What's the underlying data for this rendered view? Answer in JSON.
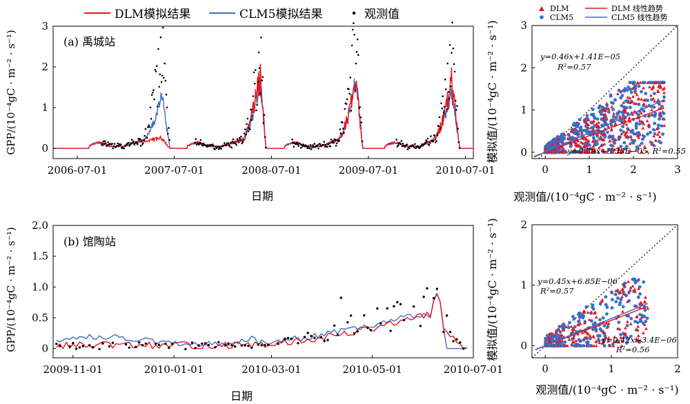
{
  "legend": {
    "dlm_label": "DLM模拟结果",
    "clm5_label": "CLM5模拟结果",
    "obs_label": "观测值"
  },
  "colors": {
    "dlm": "#e8141c",
    "clm5": "#3a6ec4",
    "obs": "#000000",
    "one_to_one": "#000000"
  },
  "chart_data": [
    {
      "id": "a_ts",
      "type": "line",
      "panel_label": "(a) 禹城站",
      "xlabel": "日期",
      "ylabel": "GPP/(10⁻⁴gC · m⁻² · s⁻¹)",
      "x_ticks": [
        "2006-07-01",
        "2007-07-01",
        "2008-07-01",
        "2009-07-01",
        "2010-07-01"
      ],
      "x_range": [
        "2006-04-01",
        "2010-07-31"
      ],
      "y_ticks": [
        0,
        1,
        2,
        3
      ],
      "ylim": [
        -0.25,
        3
      ],
      "seasons": [
        {
          "start": "2006-08-15",
          "peak": "2007-05-15",
          "end": "2007-06-15",
          "obs_peak": 2.6,
          "clm_peak": 1.3,
          "dlm_peak": 0.25,
          "obs_onset": "2006-10-01"
        },
        {
          "start": "2007-08-20",
          "peak": "2008-05-20",
          "end": "2008-06-10",
          "obs_peak": 2.3,
          "clm_peak": 1.65,
          "dlm_peak": 1.75,
          "obs_onset": "2007-09-15"
        },
        {
          "start": "2008-08-20",
          "peak": "2009-05-15",
          "end": "2009-06-10",
          "obs_peak": 2.7,
          "clm_peak": 1.65,
          "dlm_peak": 1.6,
          "obs_onset": "2008-09-15"
        },
        {
          "start": "2009-09-01",
          "peak": "2010-05-10",
          "end": "2010-06-10",
          "obs_peak": 2.4,
          "clm_peak": 1.45,
          "dlm_peak": 1.6,
          "obs_onset": "2009-10-15"
        }
      ]
    },
    {
      "id": "a_sc",
      "type": "scatter",
      "xlabel": "观测值/(10⁻⁴gC · m⁻² · s⁻¹)",
      "ylabel": "模拟值/(10⁻⁴gC · m⁻² · s⁻¹)",
      "x_ticks": [
        0,
        1,
        2,
        3
      ],
      "y_ticks": [
        0,
        1,
        2,
        3
      ],
      "xlim": [
        -0.3,
        3.0
      ],
      "ylim": [
        -0.15,
        3.0
      ],
      "legend": [
        "DLM",
        "CLM5",
        "DLM 线性趋势",
        "CLM5 线性趋势"
      ],
      "eq_clm": "y=0.46x+1.41E−05",
      "r2_clm": "R²=0.57",
      "eq_dlm": "y=0.39x+3.33E−05, R²=0.55",
      "fit_clm": {
        "slope": 0.46,
        "intercept": 0.0
      },
      "fit_dlm": {
        "slope": 0.39,
        "intercept": 0.0
      },
      "n_points": 560,
      "x_max": 2.7
    },
    {
      "id": "b_ts",
      "type": "line",
      "panel_label": "(b) 馆陶站",
      "xlabel": "日期",
      "ylabel": "GPP/(10⁻⁴gC · m⁻² · s⁻¹)",
      "x_ticks": [
        "2009-11-01",
        "2010-01-01",
        "2010-03-01",
        "2010-05-01",
        "2010-07-01"
      ],
      "x_range": [
        "2009-10-20",
        "2010-07-01"
      ],
      "y_ticks": [
        0,
        0.5,
        1.0,
        1.5,
        2.0
      ],
      "y_tick_labels": [
        "0",
        "0.5",
        "1.0",
        "1.5",
        "2.0"
      ],
      "ylim": [
        -0.15,
        2.0
      ],
      "segments": {
        "winter_end": "2010-02-20",
        "growth_peak": "2010-06-05",
        "harvest": "2010-06-13",
        "end": "2010-06-25"
      }
    },
    {
      "id": "b_sc",
      "type": "scatter",
      "xlabel": "观测值/(10⁻⁴gC · m⁻² · s⁻¹)",
      "ylabel": "模拟值/(10⁻⁴gC · m⁻² · s⁻¹)",
      "x_ticks": [
        0,
        1,
        2
      ],
      "y_ticks": [
        0,
        1,
        2
      ],
      "xlim": [
        -0.2,
        2.0
      ],
      "ylim": [
        -0.2,
        2.0
      ],
      "eq_clm": "y=0.45x+6.85E−06",
      "r2_clm": "R²=0.57",
      "eq_dlm": "y=0.42x+3.4E−06",
      "r2_dlm": "R²=0.56",
      "fit_clm": {
        "slope": 0.45,
        "intercept": 0.0
      },
      "fit_dlm": {
        "slope": 0.42,
        "intercept": 0.0
      },
      "n_points": 230,
      "x_max": 1.55
    }
  ]
}
